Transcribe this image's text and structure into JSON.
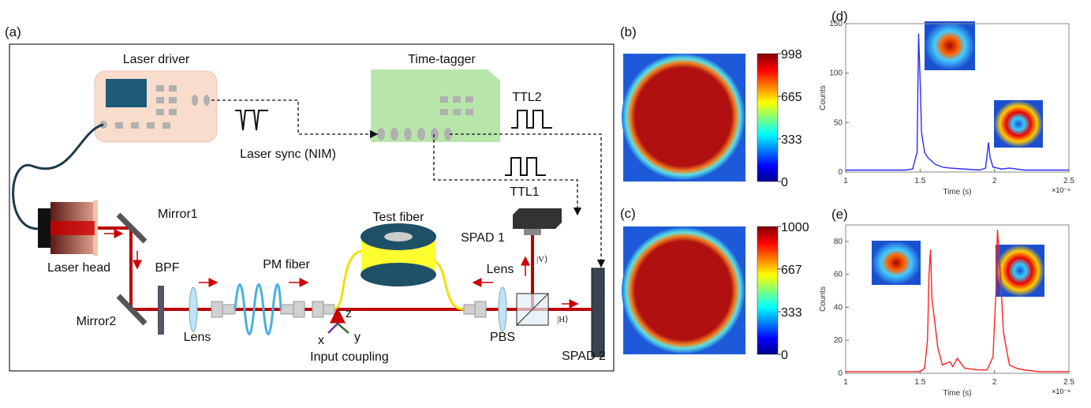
{
  "panel_labels": [
    "(a)",
    "(b)",
    "(c)",
    "(d)",
    "(e)"
  ],
  "diagram": {
    "laser_driver": "Laser driver",
    "time_tagger": "Time-tagger",
    "ttl2": "TTL2",
    "ttl1": "TTL1",
    "laser_sync": "Laser sync (NIM)",
    "mirror1": "Mirror1",
    "mirror2": "Mirror2",
    "laser_head": "Laser head",
    "bpf": "BPF",
    "lens1": "Lens",
    "pm_fiber": "PM fiber",
    "test_fiber": "Test fiber",
    "axis_x": "x",
    "axis_y": "y",
    "axis_z": "z",
    "input_coupling": "Input coupling",
    "spad1": "SPAD 1",
    "spad2": "SPAD 2",
    "lens2": "Lens",
    "pbs": "PBS",
    "state_v": "|V⟩",
    "state_h": "|H⟩"
  },
  "colorbars": [
    {
      "clim": [
        0,
        998
      ],
      "ticks": [
        0,
        333,
        665,
        998
      ]
    },
    {
      "clim": [
        0,
        1000
      ],
      "ticks": [
        0,
        333,
        667,
        1000
      ]
    }
  ],
  "chart_data": [
    {
      "type": "line",
      "x_label": "Time (s)",
      "y_label": "Counts",
      "x_multiplier": "×10⁻⁸",
      "xlim": [
        1,
        2.5
      ],
      "xticks": [
        1,
        1.5,
        2,
        2.5
      ],
      "ylim": [
        0,
        150
      ],
      "yticks": [
        0,
        50,
        100,
        150
      ],
      "x": [
        1.0,
        1.1,
        1.2,
        1.3,
        1.4,
        1.45,
        1.48,
        1.49,
        1.5,
        1.51,
        1.53,
        1.55,
        1.6,
        1.65,
        1.7,
        1.8,
        1.9,
        1.94,
        1.96,
        1.97,
        1.99,
        2.05,
        2.1,
        2.2,
        2.3,
        2.4,
        2.5
      ],
      "series": [
        {
          "color": "#2b2bff",
          "values": [
            2,
            2,
            2,
            2,
            2,
            3,
            20,
            140,
            95,
            40,
            20,
            15,
            8,
            5,
            4,
            3,
            2,
            4,
            30,
            15,
            5,
            3,
            4,
            2,
            2,
            2,
            2
          ]
        }
      ]
    },
    {
      "type": "line",
      "x_label": "Time (s)",
      "y_label": "Counts",
      "x_multiplier": "×10⁻⁸",
      "xlim": [
        1,
        2.5
      ],
      "xticks": [
        1,
        1.5,
        2,
        2.5
      ],
      "ylim": [
        0,
        90
      ],
      "yticks": [
        0,
        20,
        40,
        60,
        80
      ],
      "x": [
        1.0,
        1.2,
        1.4,
        1.5,
        1.53,
        1.55,
        1.56,
        1.57,
        1.58,
        1.6,
        1.62,
        1.65,
        1.7,
        1.72,
        1.75,
        1.8,
        1.9,
        1.95,
        1.99,
        2.01,
        2.02,
        2.04,
        2.06,
        2.1,
        2.15,
        2.2,
        2.3,
        2.4,
        2.5
      ],
      "series": [
        {
          "color": "#ff2020",
          "values": [
            1,
            1,
            1,
            1,
            3,
            20,
            60,
            75,
            45,
            30,
            15,
            5,
            7,
            4,
            9,
            3,
            2,
            2,
            10,
            50,
            87,
            60,
            25,
            5,
            3,
            2,
            1,
            1,
            1
          ]
        }
      ]
    }
  ]
}
